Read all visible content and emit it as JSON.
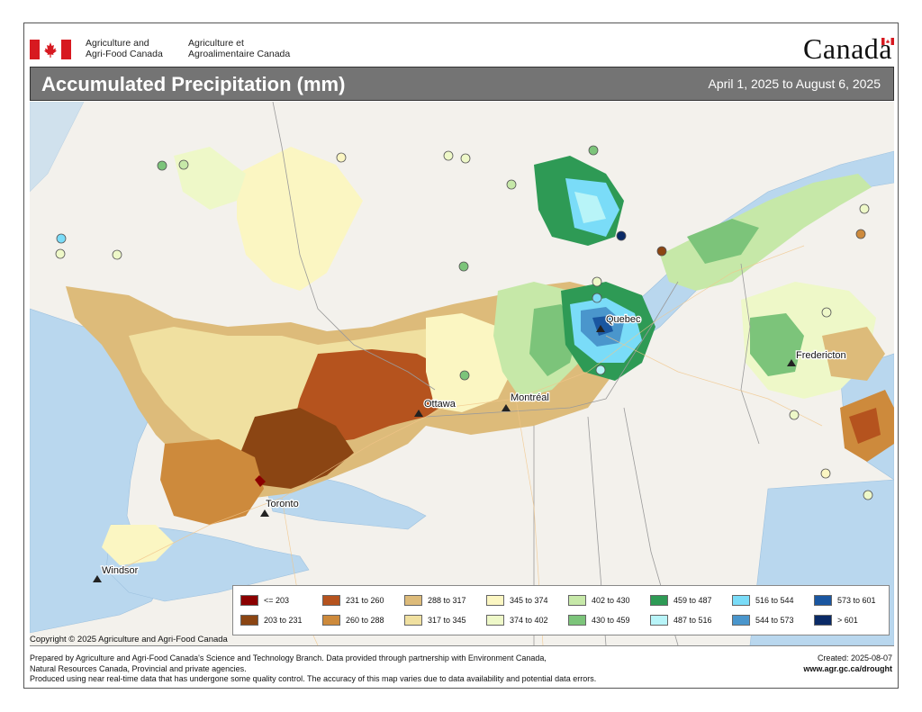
{
  "header": {
    "dept_en_line1": "Agriculture and",
    "dept_en_line2": "Agri-Food Canada",
    "dept_fr_line1": "Agriculture et",
    "dept_fr_line2": "Agroalimentaire Canada",
    "wordmark": "Canada"
  },
  "title": "Accumulated Precipitation (mm)",
  "date_range": "April 1, 2025 to August 6, 2025",
  "cities": [
    {
      "name": "Quebec"
    },
    {
      "name": "Fredericton"
    },
    {
      "name": "Ottawa"
    },
    {
      "name": "Montréal"
    },
    {
      "name": "Toronto"
    },
    {
      "name": "Windsor"
    }
  ],
  "legend": [
    {
      "label": "<= 203",
      "color": "#8b0000"
    },
    {
      "label": "203 to 231",
      "color": "#8b4513"
    },
    {
      "label": "231 to 260",
      "color": "#b5531e"
    },
    {
      "label": "260 to 288",
      "color": "#cd8a3c"
    },
    {
      "label": "288 to 317",
      "color": "#ddbb7a"
    },
    {
      "label": "317 to 345",
      "color": "#f0e0a0"
    },
    {
      "label": "345 to 374",
      "color": "#fbf6c2"
    },
    {
      "label": "374 to 402",
      "color": "#eef8c8"
    },
    {
      "label": "402 to 430",
      "color": "#c6e8a8"
    },
    {
      "label": "430 to 459",
      "color": "#7cc47a"
    },
    {
      "label": "459 to 487",
      "color": "#2e9a55"
    },
    {
      "label": "487 to 516",
      "color": "#b8f4f8"
    },
    {
      "label": "516 to 544",
      "color": "#7adcf8"
    },
    {
      "label": "544 to 573",
      "color": "#4a96cc"
    },
    {
      "label": "573 to 601",
      "color": "#1a56a0"
    },
    {
      "label": "> 601",
      "color": "#0a2a66"
    }
  ],
  "copyright": "Copyright © 2025 Agriculture and Agri-Food Canada",
  "footer": {
    "line1": "Prepared by Agriculture and Agri-Food Canada's Science and Technology Branch. Data provided through partnership with Environment Canada,",
    "line2": "Natural Resources Canada, Provincial and private agencies.",
    "line3": "Produced using near real-time data that has undergone some quality control. The accuracy of this map varies due to data availability and potential data errors.",
    "created": "Created: 2025-08-07",
    "url": "www.agr.gc.ca/drought"
  }
}
